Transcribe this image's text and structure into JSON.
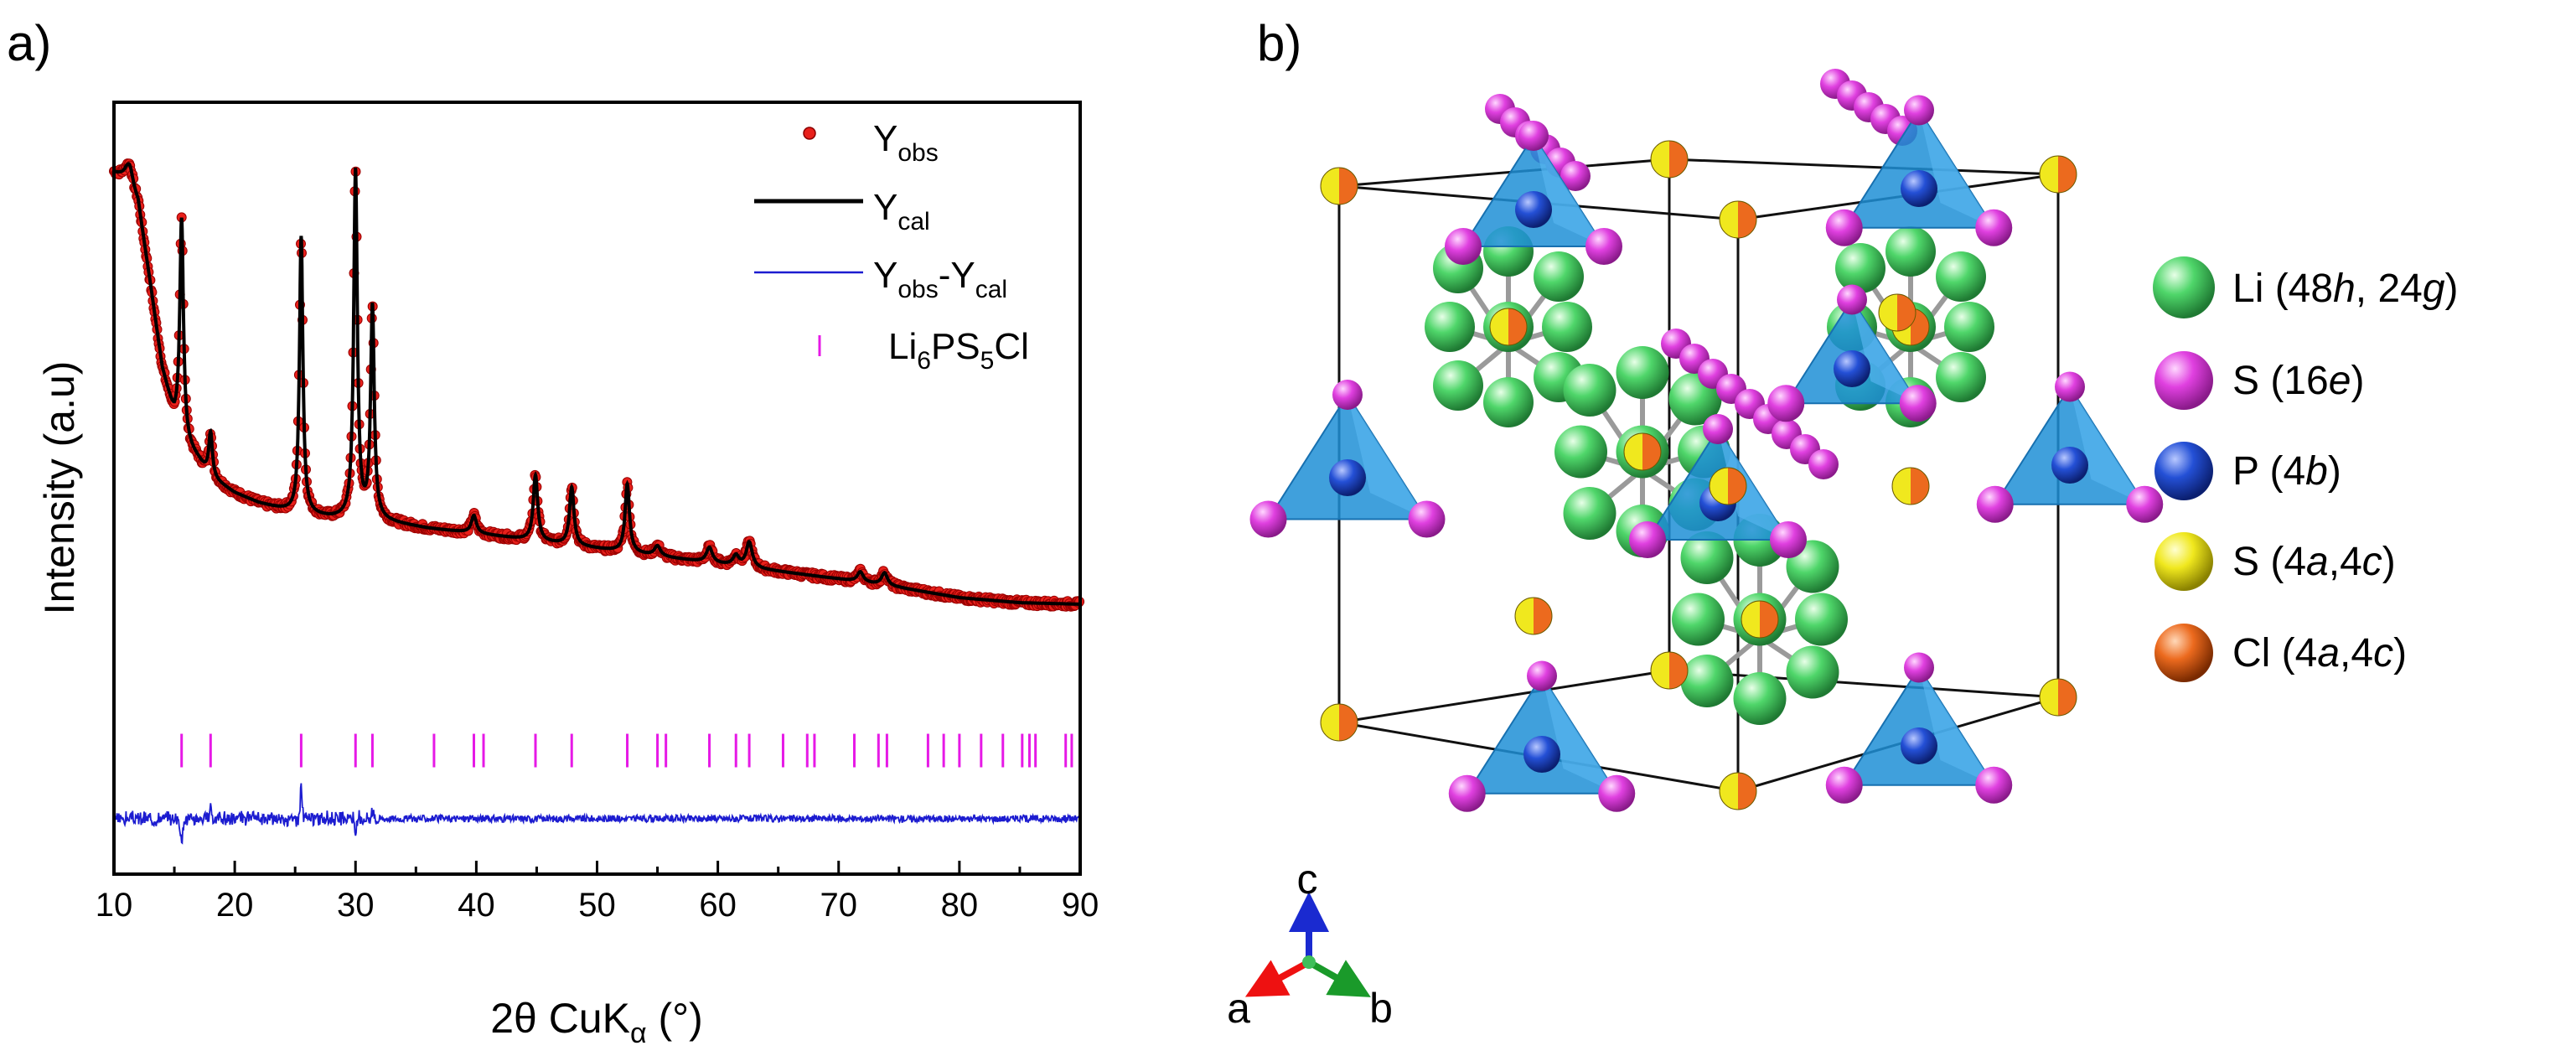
{
  "panel_a": {
    "label": "a)",
    "legend": {
      "obs_main": "Y",
      "obs_sub": "obs",
      "cal_main": "Y",
      "cal_sub": "cal",
      "diff_main1": "Y",
      "diff_sub1": "obs",
      "diff_mid": "-Y",
      "diff_sub2": "cal",
      "phase_p1": "Li",
      "phase_s1": "6",
      "phase_p2": "PS",
      "phase_s2": "5",
      "phase_p3": "Cl"
    }
  },
  "panel_b": {
    "label": "b)",
    "legend": [
      {
        "name": "Li",
        "pre": "Li (48",
        "it1": "h",
        "mid": ", 24",
        "it2": "g",
        "post": ")"
      },
      {
        "name": "S16e",
        "pre": "S (16",
        "it1": "e",
        "mid": "",
        "it2": "",
        "post": ")"
      },
      {
        "name": "P",
        "pre": "P (4",
        "it1": "b",
        "mid": "",
        "it2": "",
        "post": ")"
      },
      {
        "name": "S4a4c",
        "pre": "S (4",
        "it1": "a",
        "mid": ",4",
        "it2": "c",
        "post": ")"
      },
      {
        "name": "Cl",
        "pre": "Cl (4",
        "it1": "a",
        "mid": ",4",
        "it2": "c",
        "post": ")"
      }
    ],
    "axes_labels": {
      "a": "a",
      "b": "b",
      "c": "c"
    }
  },
  "colors": {
    "obs": "#e8201b",
    "cal": "#000000",
    "diff": "#1c1cd0",
    "tick": "#e619e6",
    "li": "#3fbf5a",
    "s16e": "#d43fd4",
    "p": "#1f45c8",
    "s4": "#e8e21a",
    "cl": "#e85a16",
    "tetra": "#1f8fd6"
  },
  "chart_data": {
    "type": "line",
    "title": "",
    "xlabel_main": "2θ CuK",
    "xlabel_sub": "α",
    "xlabel_unit": " (°)",
    "ylabel": "Intensity (a.u)",
    "xlim": [
      10,
      90
    ],
    "ylim": [
      -0.45,
      1.08
    ],
    "xticks": [
      10,
      20,
      30,
      40,
      50,
      60,
      70,
      80,
      90
    ],
    "background": [
      [
        10,
        0.94
      ],
      [
        11,
        0.93
      ],
      [
        12,
        0.88
      ],
      [
        13,
        0.72
      ],
      [
        14,
        0.55
      ],
      [
        15,
        0.45
      ],
      [
        16,
        0.4
      ],
      [
        17,
        0.37
      ],
      [
        18,
        0.335
      ],
      [
        20,
        0.305
      ],
      [
        22,
        0.285
      ],
      [
        25,
        0.265
      ],
      [
        28,
        0.255
      ],
      [
        32,
        0.25
      ],
      [
        36,
        0.235
      ],
      [
        40,
        0.225
      ],
      [
        45,
        0.21
      ],
      [
        50,
        0.195
      ],
      [
        55,
        0.18
      ],
      [
        60,
        0.165
      ],
      [
        65,
        0.15
      ],
      [
        70,
        0.135
      ],
      [
        75,
        0.118
      ],
      [
        80,
        0.098
      ],
      [
        85,
        0.088
      ],
      [
        90,
        0.085
      ]
    ],
    "peaks": [
      {
        "pos": 11.3,
        "height": 0.04,
        "width": 0.35
      },
      {
        "pos": 15.6,
        "height": 0.43,
        "width": 0.18
      },
      {
        "pos": 18.0,
        "height": 0.09,
        "width": 0.18
      },
      {
        "pos": 25.5,
        "height": 0.55,
        "width": 0.17
      },
      {
        "pos": 30.0,
        "height": 0.69,
        "width": 0.18
      },
      {
        "pos": 31.4,
        "height": 0.42,
        "width": 0.18
      },
      {
        "pos": 39.8,
        "height": 0.035,
        "width": 0.25
      },
      {
        "pos": 44.9,
        "height": 0.13,
        "width": 0.22
      },
      {
        "pos": 47.9,
        "height": 0.115,
        "width": 0.22
      },
      {
        "pos": 52.5,
        "height": 0.135,
        "width": 0.22
      },
      {
        "pos": 55.0,
        "height": 0.02,
        "width": 0.3
      },
      {
        "pos": 59.3,
        "height": 0.03,
        "width": 0.3
      },
      {
        "pos": 61.5,
        "height": 0.02,
        "width": 0.3
      },
      {
        "pos": 62.6,
        "height": 0.05,
        "width": 0.3
      },
      {
        "pos": 71.8,
        "height": 0.02,
        "width": 0.3
      },
      {
        "pos": 73.8,
        "height": 0.025,
        "width": 0.3
      }
    ],
    "bragg_positions": [
      15.6,
      18.0,
      25.5,
      30.0,
      31.4,
      36.5,
      39.8,
      40.6,
      44.9,
      47.9,
      52.5,
      55.0,
      55.7,
      59.3,
      61.5,
      62.6,
      65.4,
      67.4,
      68.0,
      71.3,
      73.3,
      74.0,
      77.4,
      78.7,
      80.0,
      81.8,
      83.6,
      85.2,
      85.8,
      86.3,
      88.8,
      89.3
    ],
    "bragg_level": -0.205,
    "diff_baseline": -0.34,
    "diff_features": [
      {
        "pos": 15.6,
        "amp": -0.05
      },
      {
        "pos": 18.0,
        "amp": 0.025
      },
      {
        "pos": 25.5,
        "amp": 0.06
      },
      {
        "pos": 30.0,
        "amp": -0.035
      },
      {
        "pos": 31.4,
        "amp": 0.02
      }
    ],
    "series": [
      {
        "name": "Y_obs",
        "style": "points",
        "color": "#e8201b"
      },
      {
        "name": "Y_cal",
        "style": "line",
        "color": "#000000"
      },
      {
        "name": "Y_obs-Y_cal",
        "style": "line",
        "color": "#1c1cd0"
      },
      {
        "name": "Li6PS5Cl",
        "style": "ticks",
        "color": "#e619e6"
      }
    ]
  }
}
